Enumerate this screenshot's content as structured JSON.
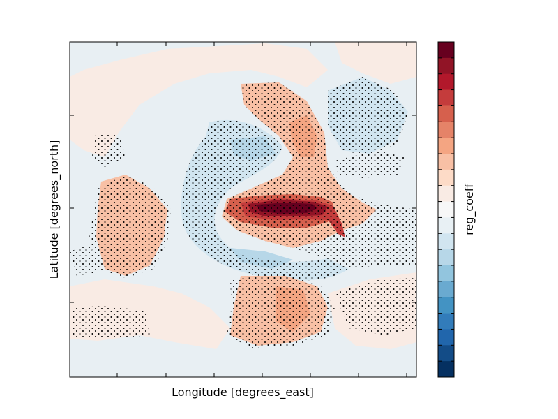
{
  "chart_data": {
    "type": "heatmap",
    "title": "",
    "xlabel": "Longitude [degrees_east]",
    "ylabel": "Latitude [degrees_north]",
    "colorbar_label": "reg_coeff",
    "xtick_labels": [],
    "ytick_labels": [],
    "colormap": "RdBu_r",
    "colorbar_colors": [
      "#053061",
      "#134c87",
      "#2166ac",
      "#327cba",
      "#4393c3",
      "#6aaad0",
      "#92c5de",
      "#b7d7e8",
      "#d1e5f0",
      "#e8f0f4",
      "#f7f7f7",
      "#f9ebe4",
      "#fddbc7",
      "#f8c0a5",
      "#f4a582",
      "#e58368",
      "#d6604d",
      "#c43c3c",
      "#b2182b",
      "#911426",
      "#67001f"
    ],
    "stipple_note": "dots mark significant regions",
    "features": [
      {
        "name": "equatorial-maximum",
        "value": 1.0
      },
      {
        "name": "northern-positive-arc",
        "value": 0.4
      },
      {
        "name": "southern-positive-lobe",
        "value": 0.3
      },
      {
        "name": "western-positive-lobe",
        "value": 0.25
      },
      {
        "name": "northern-negative-band",
        "value": -0.25
      },
      {
        "name": "southern-negative-band",
        "value": -0.2
      },
      {
        "name": "northeast-negative-patch",
        "value": -0.2
      }
    ]
  }
}
